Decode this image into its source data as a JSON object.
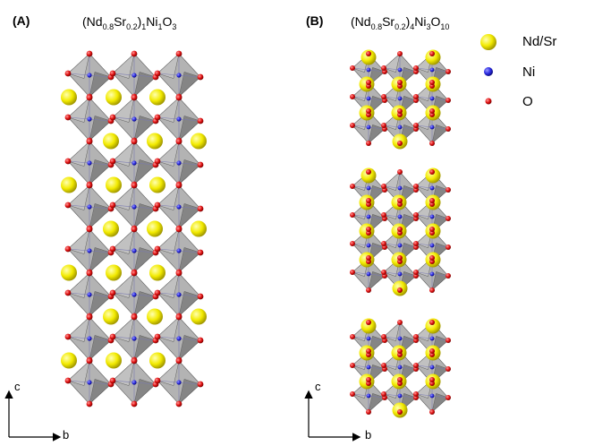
{
  "panels": [
    {
      "label": "(A)",
      "formula": [
        {
          "t": "(Nd"
        },
        {
          "sub": "0.8"
        },
        {
          "t": "Sr"
        },
        {
          "sub": "0.2"
        },
        {
          "t": ")"
        },
        {
          "sub": "1"
        },
        {
          "t": "Ni"
        },
        {
          "sub": "1"
        },
        {
          "t": "O"
        },
        {
          "sub": "3"
        }
      ],
      "axes": {
        "vertical": "c",
        "horizontal": "b"
      }
    },
    {
      "label": "(B)",
      "formula": [
        {
          "t": "(Nd"
        },
        {
          "sub": "0.8"
        },
        {
          "t": "Sr"
        },
        {
          "sub": "0.2"
        },
        {
          "t": ")"
        },
        {
          "sub": "4"
        },
        {
          "t": "Ni"
        },
        {
          "sub": "3"
        },
        {
          "t": "O"
        },
        {
          "sub": "10"
        }
      ],
      "axes": {
        "vertical": "c",
        "horizontal": "b"
      }
    }
  ],
  "legend": [
    {
      "label": "Nd/Sr",
      "color": "#f2ea00"
    },
    {
      "label": "Ni",
      "color": "#1a1ad6"
    },
    {
      "label": "O",
      "color": "#e01010"
    }
  ],
  "colors": {
    "octahedron": "#9a9a9a",
    "octahedron_dark": "#5f5f5f",
    "octahedron_light": "#c9c9c9",
    "axis": "#000000"
  }
}
